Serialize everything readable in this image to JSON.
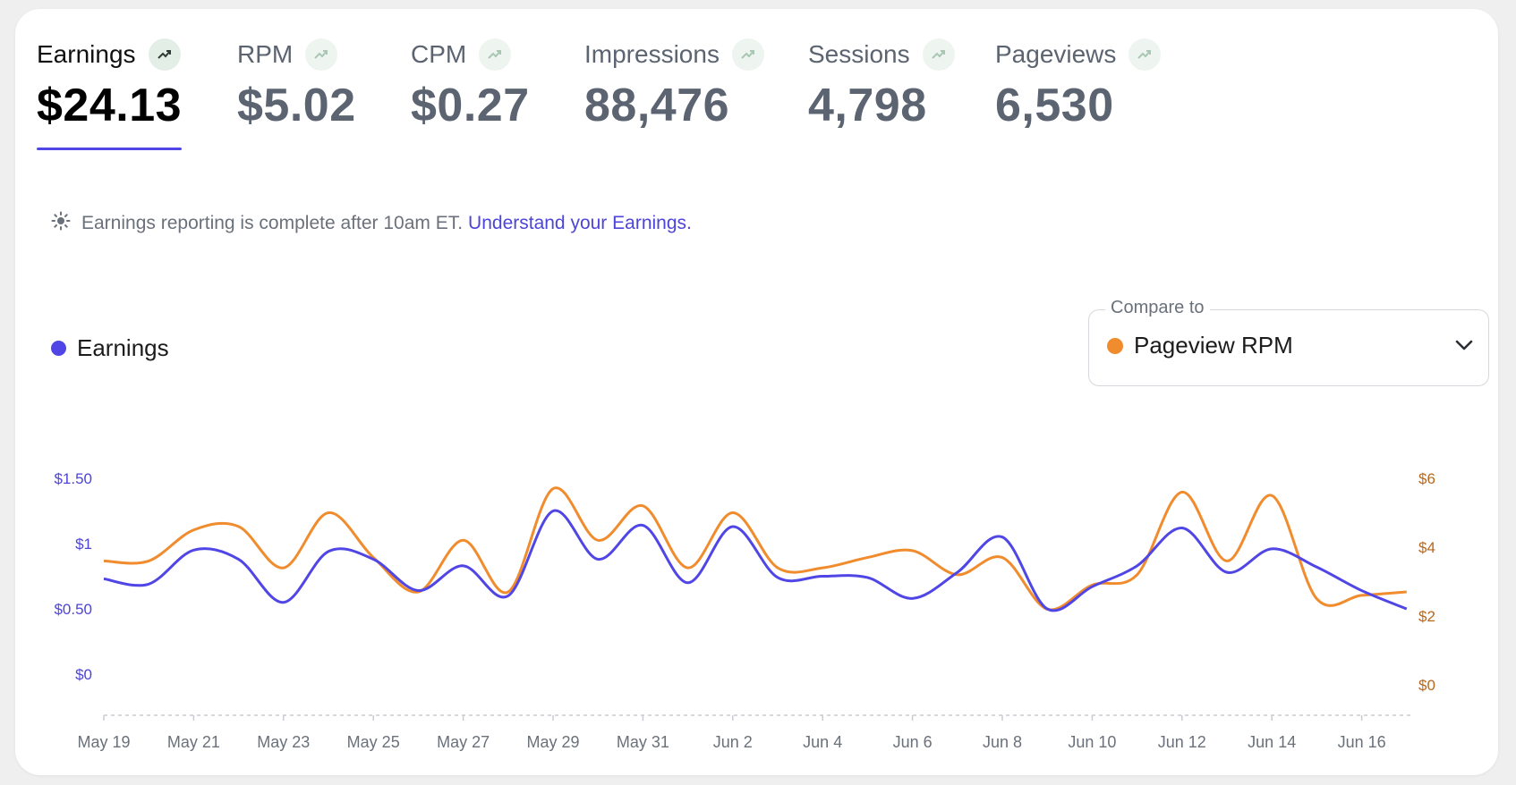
{
  "metrics": [
    {
      "label": "Earnings",
      "value": "$24.13",
      "active": true
    },
    {
      "label": "RPM",
      "value": "$5.02",
      "active": false
    },
    {
      "label": "CPM",
      "value": "$0.27",
      "active": false
    },
    {
      "label": "Impressions",
      "value": "88,476",
      "active": false
    },
    {
      "label": "Sessions",
      "value": "4,798",
      "active": false
    },
    {
      "label": "Pageviews",
      "value": "6,530",
      "active": false
    }
  ],
  "notice": {
    "text": "Earnings reporting is complete after 10am ET.",
    "link": "Understand your Earnings."
  },
  "legend": {
    "label": "Earnings"
  },
  "compare": {
    "caption": "Compare to",
    "selected": "Pageview RPM"
  },
  "colors": {
    "earnings": "#5046e5",
    "pageview_rpm": "#f08c2d",
    "left_axis": "#4d44d8",
    "right_axis": "#b8681c"
  },
  "chart_data": {
    "type": "line",
    "x": [
      "May 19",
      "May 20",
      "May 21",
      "May 22",
      "May 23",
      "May 24",
      "May 25",
      "May 26",
      "May 27",
      "May 28",
      "May 29",
      "May 30",
      "May 31",
      "Jun 1",
      "Jun 2",
      "Jun 3",
      "Jun 4",
      "Jun 5",
      "Jun 6",
      "Jun 7",
      "Jun 8",
      "Jun 9",
      "Jun 10",
      "Jun 11",
      "Jun 12",
      "Jun 13",
      "Jun 14",
      "Jun 15",
      "Jun 16",
      "Jun 17"
    ],
    "xticks": [
      "May 19",
      "May 21",
      "May 23",
      "May 25",
      "May 27",
      "May 29",
      "May 31",
      "Jun 2",
      "Jun 4",
      "Jun 6",
      "Jun 8",
      "Jun 10",
      "Jun 12",
      "Jun 14",
      "Jun 16"
    ],
    "y_left": {
      "ticks": [
        "$0",
        "$0.50",
        "$1",
        "$1.50"
      ],
      "ylim": [
        0,
        1.5
      ]
    },
    "y_right": {
      "ticks": [
        "$0",
        "$2",
        "$4",
        "$6"
      ],
      "ylim": [
        0,
        6
      ]
    },
    "series": [
      {
        "name": "Earnings",
        "axis": "left",
        "values": [
          0.73,
          0.69,
          0.95,
          0.88,
          0.55,
          0.94,
          0.88,
          0.64,
          0.83,
          0.6,
          1.25,
          0.88,
          1.14,
          0.7,
          1.13,
          0.74,
          0.75,
          0.74,
          0.58,
          0.78,
          1.05,
          0.5,
          0.67,
          0.83,
          1.12,
          0.78,
          0.96,
          0.82,
          0.64,
          0.5
        ]
      },
      {
        "name": "Pageview RPM",
        "axis": "right",
        "values": [
          3.6,
          3.6,
          4.5,
          4.6,
          3.4,
          5.0,
          3.7,
          2.7,
          4.2,
          2.7,
          5.7,
          4.2,
          5.2,
          3.4,
          5.0,
          3.4,
          3.4,
          3.7,
          3.9,
          3.2,
          3.7,
          2.2,
          2.9,
          3.2,
          5.6,
          3.6,
          5.5,
          2.5,
          2.6,
          2.7
        ]
      }
    ]
  }
}
